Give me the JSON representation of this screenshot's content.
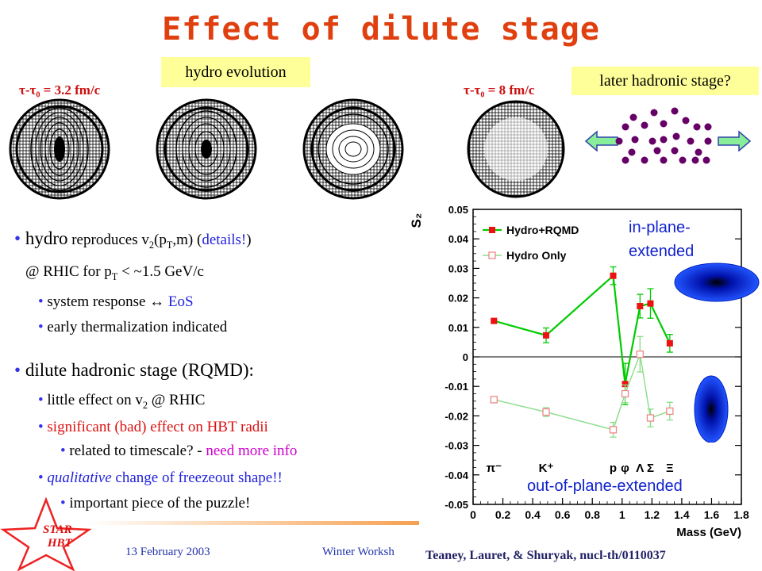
{
  "slide": {
    "title": "Effect of dilute stage",
    "hydro_label": "hydro evolution",
    "later_label": "later hadronic stage?",
    "tau_left": "τ-τ₀ = 3.2 fm/c",
    "tau_right": "τ-τ₀ = 8 fm/c"
  },
  "bullets": {
    "b1_pre": "hydro",
    "b1_mid": " reproduces v",
    "b1_sub1": "2",
    "b1_p": "(p",
    "b1_sub2": "T",
    "b1_post": ",m) (",
    "b1_details": "details!",
    "b1_close": ")",
    "b1_line2_pre": "@ RHIC for p",
    "b1_line2_sub": "T",
    "b1_line2_post": " < ~1.5 GeV/c",
    "b1_s1_pre": "system response ",
    "b1_s1_arrow": "↔",
    "b1_s1_eos": " EoS",
    "b1_s2": "early thermalization indicated",
    "b2": "dilute hadronic stage (RQMD):",
    "b2_s1_pre": "little effect on v",
    "b2_s1_sub": "2",
    "b2_s1_post": " @ RHIC",
    "b2_s2": "significant (bad) effect on HBT radii",
    "b2_s2a_pre": "related to timescale? - ",
    "b2_s2a_mag": "need more info",
    "b2_s3_it": "qualitative",
    "b2_s3_post": " change of freezeout shape!!",
    "b2_s3a": "important piece of the puzzle!"
  },
  "annotations": {
    "in_plane_1": "in-plane-",
    "in_plane_2": "extended",
    "out_plane": "out-of-plane-extended"
  },
  "footer": {
    "date": "13 February 2003",
    "workshop": "Winter Worksh",
    "reference": "Teaney, Lauret, & Shuryak, nucl-th/0110037",
    "logo_line1": "STAR",
    "logo_line2": "HBT"
  },
  "chart_data": {
    "type": "line",
    "ylabel": "S₂",
    "xlabel": "Mass (GeV)",
    "xlim": [
      0,
      1.8
    ],
    "ylim": [
      -0.05,
      0.05
    ],
    "xticks": [
      "0",
      "0.2",
      "0.4",
      "0.6",
      "0.8",
      "1",
      "1.2",
      "1.4",
      "1.6",
      "1.8"
    ],
    "yticks": [
      "0.05",
      "0.04",
      "0.03",
      "0.02",
      "0.01",
      "0",
      "-0.01",
      "-0.02",
      "-0.03",
      "-0.04",
      "-0.05"
    ],
    "particle_labels": [
      {
        "text": "π⁻",
        "x": 0.14
      },
      {
        "text": "K⁺",
        "x": 0.49
      },
      {
        "text": "p",
        "x": 0.94
      },
      {
        "text": "φ",
        "x": 1.02
      },
      {
        "text": "Λ",
        "x": 1.12
      },
      {
        "text": "Σ",
        "x": 1.19
      },
      {
        "text": "Ξ",
        "x": 1.32
      }
    ],
    "series": [
      {
        "name": "Hydro+RQMD",
        "color": "#00cc00",
        "marker_color": "#ee1111",
        "marker": "filled-square",
        "points": [
          {
            "x": 0.14,
            "y": 0.0122,
            "err": 0.0005
          },
          {
            "x": 0.49,
            "y": 0.0073,
            "err": 0.0025
          },
          {
            "x": 0.94,
            "y": 0.0275,
            "err": 0.003
          },
          {
            "x": 1.02,
            "y": -0.0092,
            "err": 0.007
          },
          {
            "x": 1.12,
            "y": 0.0172,
            "err": 0.004
          },
          {
            "x": 1.19,
            "y": 0.0181,
            "err": 0.005
          },
          {
            "x": 1.32,
            "y": 0.0046,
            "err": 0.003
          }
        ]
      },
      {
        "name": "Hydro Only",
        "color": "#88dd88",
        "marker_color": "#ee8888",
        "marker": "open-square",
        "points": [
          {
            "x": 0.14,
            "y": -0.0145,
            "err": 0.0005
          },
          {
            "x": 0.49,
            "y": -0.0187,
            "err": 0.0015
          },
          {
            "x": 0.94,
            "y": -0.0247,
            "err": 0.0025
          },
          {
            "x": 1.02,
            "y": -0.0125,
            "err": 0.003
          },
          {
            "x": 1.12,
            "y": 0.0009,
            "err": 0.006
          },
          {
            "x": 1.19,
            "y": -0.0207,
            "err": 0.003
          },
          {
            "x": 1.32,
            "y": -0.0184,
            "err": 0.003
          }
        ]
      }
    ],
    "legend_placement": "top-left",
    "grid": false
  }
}
